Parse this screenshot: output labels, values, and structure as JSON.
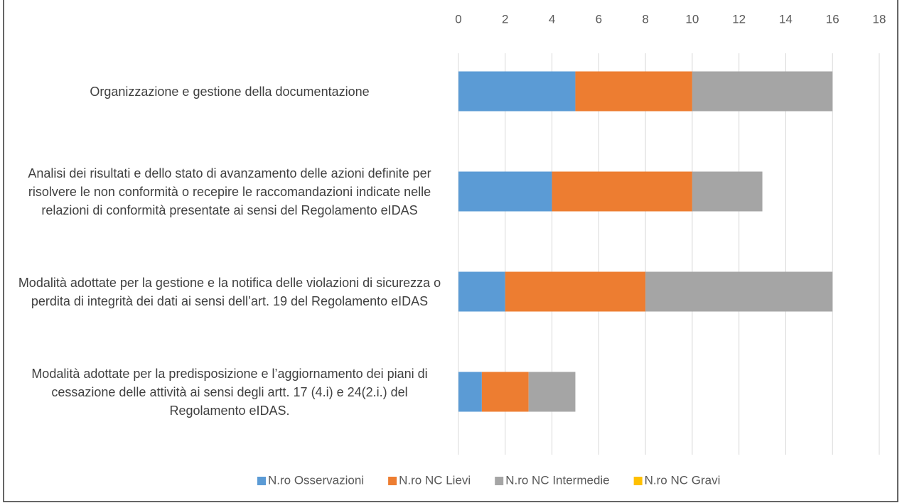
{
  "chart_data": {
    "type": "bar",
    "orientation": "horizontal",
    "stacked": true,
    "categories": [
      "Organizzazione e gestione della documentazione",
      "Analisi dei risultati e dello stato di avanzamento delle azioni definite per risolvere le non conformità o recepire le raccomandazioni indicate nelle relazioni di conformità presentate ai sensi del Regolamento eIDAS",
      "Modalità adottate per la gestione e la notifica delle violazioni di sicurezza o perdita di integrità dei dati ai sensi dell’art. 19 del Regolamento eIDAS",
      "Modalità adottate per la predisposizione e l’aggiornamento dei piani di cessazione delle attività ai sensi degli artt. 17 (4.i) e 24(2.i.) del Regolamento eIDAS."
    ],
    "series": [
      {
        "name": "N.ro Osservazioni",
        "color": "#5b9bd5",
        "values": [
          5,
          4,
          2,
          1
        ]
      },
      {
        "name": "N.ro NC Lievi",
        "color": "#ed7d31",
        "values": [
          5,
          6,
          6,
          2
        ]
      },
      {
        "name": "N.ro NC Intermedie",
        "color": "#a5a5a5",
        "values": [
          6,
          3,
          8,
          2
        ]
      },
      {
        "name": "N.ro NC Gravi",
        "color": "#ffc000",
        "values": [
          0,
          0,
          0,
          0
        ]
      }
    ],
    "xlim": [
      0,
      18
    ],
    "xticks": [
      0,
      2,
      4,
      6,
      8,
      10,
      12,
      14,
      16,
      18
    ],
    "grid": true,
    "legend": "bottom"
  }
}
